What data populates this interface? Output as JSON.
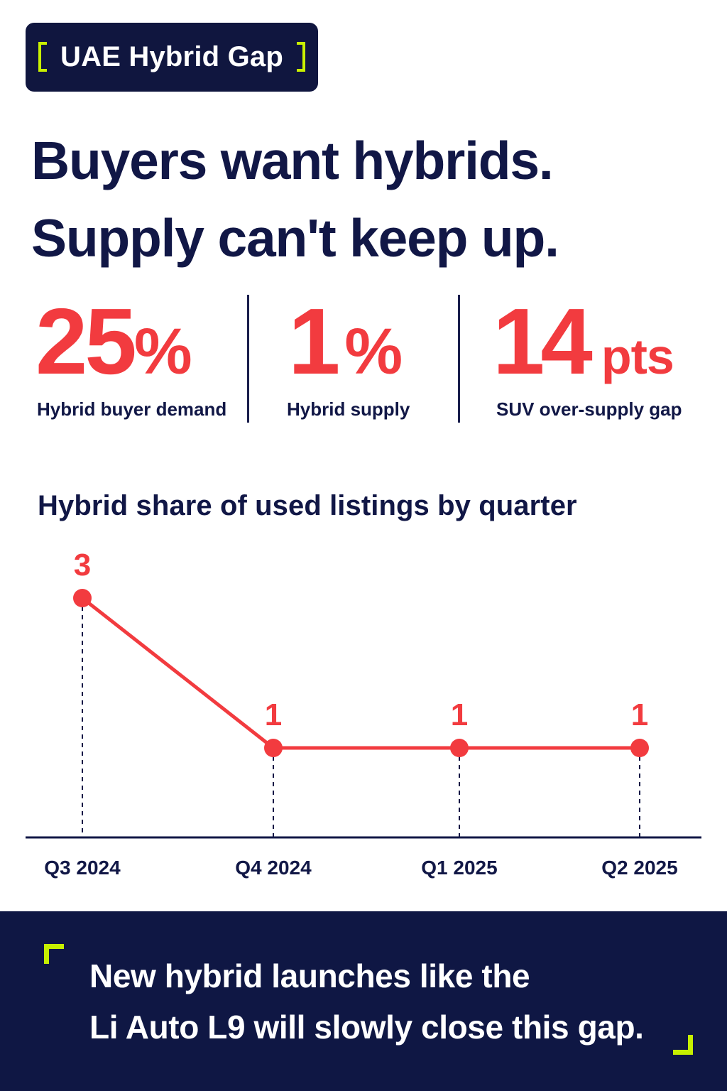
{
  "badge": {
    "label": "UAE Hybrid Gap"
  },
  "headline": {
    "line1": "Buyers want hybrids.",
    "line2": "Supply can't keep up."
  },
  "stats": [
    {
      "number": "25",
      "unit": "%",
      "label": "Hybrid buyer demand"
    },
    {
      "number": "1",
      "unit": "%",
      "label": "Hybrid supply"
    },
    {
      "number": "14",
      "unit": "pts",
      "label": "SUV over-supply gap"
    }
  ],
  "colors": {
    "navy": "#111746",
    "accent_red": "#f23b3f",
    "accent_lime": "#c6ef00",
    "footer_bg": "#0f1744"
  },
  "chart_data": {
    "type": "line",
    "title": "Hybrid share of used listings by quarter",
    "categories": [
      "Q3 2024",
      "Q4 2024",
      "Q1 2025",
      "Q2 2025"
    ],
    "values": [
      3,
      1,
      1,
      1
    ],
    "data_labels": [
      "3",
      "1",
      "1",
      "1"
    ],
    "xlabel": "",
    "ylabel": "",
    "ylim": [
      0,
      3
    ],
    "grid": false,
    "legend": "none"
  },
  "footer": {
    "line1": "New hybrid launches like the",
    "line2": "Li Auto L9 will slowly close this gap."
  }
}
